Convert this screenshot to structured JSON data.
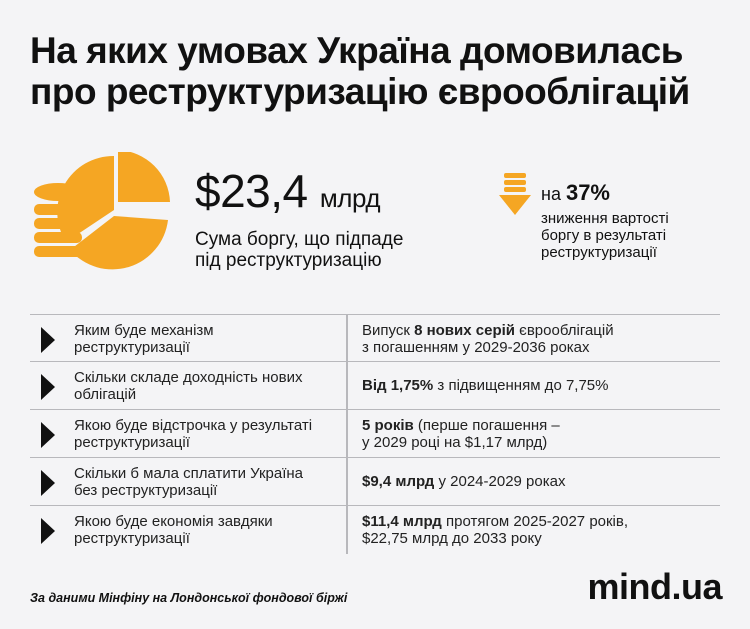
{
  "title": {
    "line1": "На яких умовах Україна домовилась",
    "line2": "про реструктуризацію єврооблігацій"
  },
  "colors": {
    "accent": "#f5a623",
    "text": "#111111",
    "background": "#f4f4f6"
  },
  "debt": {
    "amount": "$23,4",
    "unit": "млрд",
    "caption_line1": "Сума боргу, що підпаде",
    "caption_line2": "під реструктуризацію",
    "icon": "pie-chart-coins-icon"
  },
  "reduction": {
    "prefix": "на ",
    "percent": "37%",
    "caption_line1": "зниження вартості",
    "caption_line2": "боргу в результаті",
    "caption_line3": "реструктуризації",
    "icon": "arrow-down-icon"
  },
  "rows": [
    {
      "q1": "Яким буде механізм",
      "q2": "реструктуризації",
      "a_pre": "Випуск ",
      "a_bold": "8 нових серій",
      "a_post": " єврооблігацій",
      "a2": "з погашенням у 2029-2036 роках"
    },
    {
      "q1": "Скільки складе доходність нових",
      "q2": "облігацій",
      "a_pre": "",
      "a_bold": "Від 1,75%",
      "a_post": " з підвищенням до 7,75%",
      "a2": ""
    },
    {
      "q1": "Якою буде відстрочка у результаті",
      "q2": "реструктуризації",
      "a_pre": "",
      "a_bold": "5 років",
      "a_post": " (перше погашення –",
      "a2": "у 2029 році на $1,17 млрд)"
    },
    {
      "q1": "Скільки б мала сплатити Україна",
      "q2": "без реструктуризації",
      "a_pre": "",
      "a_bold": "$9,4 млрд",
      "a_post": " у 2024-2029 роках",
      "a2": ""
    },
    {
      "q1": "Якою буде економія завдяки",
      "q2": "реструктуризації",
      "a_pre": "",
      "a_bold": "$11,4 млрд",
      "a_post": " протягом 2025-2027 років,",
      "a2": "$22,75 млрд до 2033 року"
    }
  ],
  "footer": {
    "source": "За даними Мінфіну на Лондонської фондової біржі",
    "logo": "mind.ua"
  }
}
